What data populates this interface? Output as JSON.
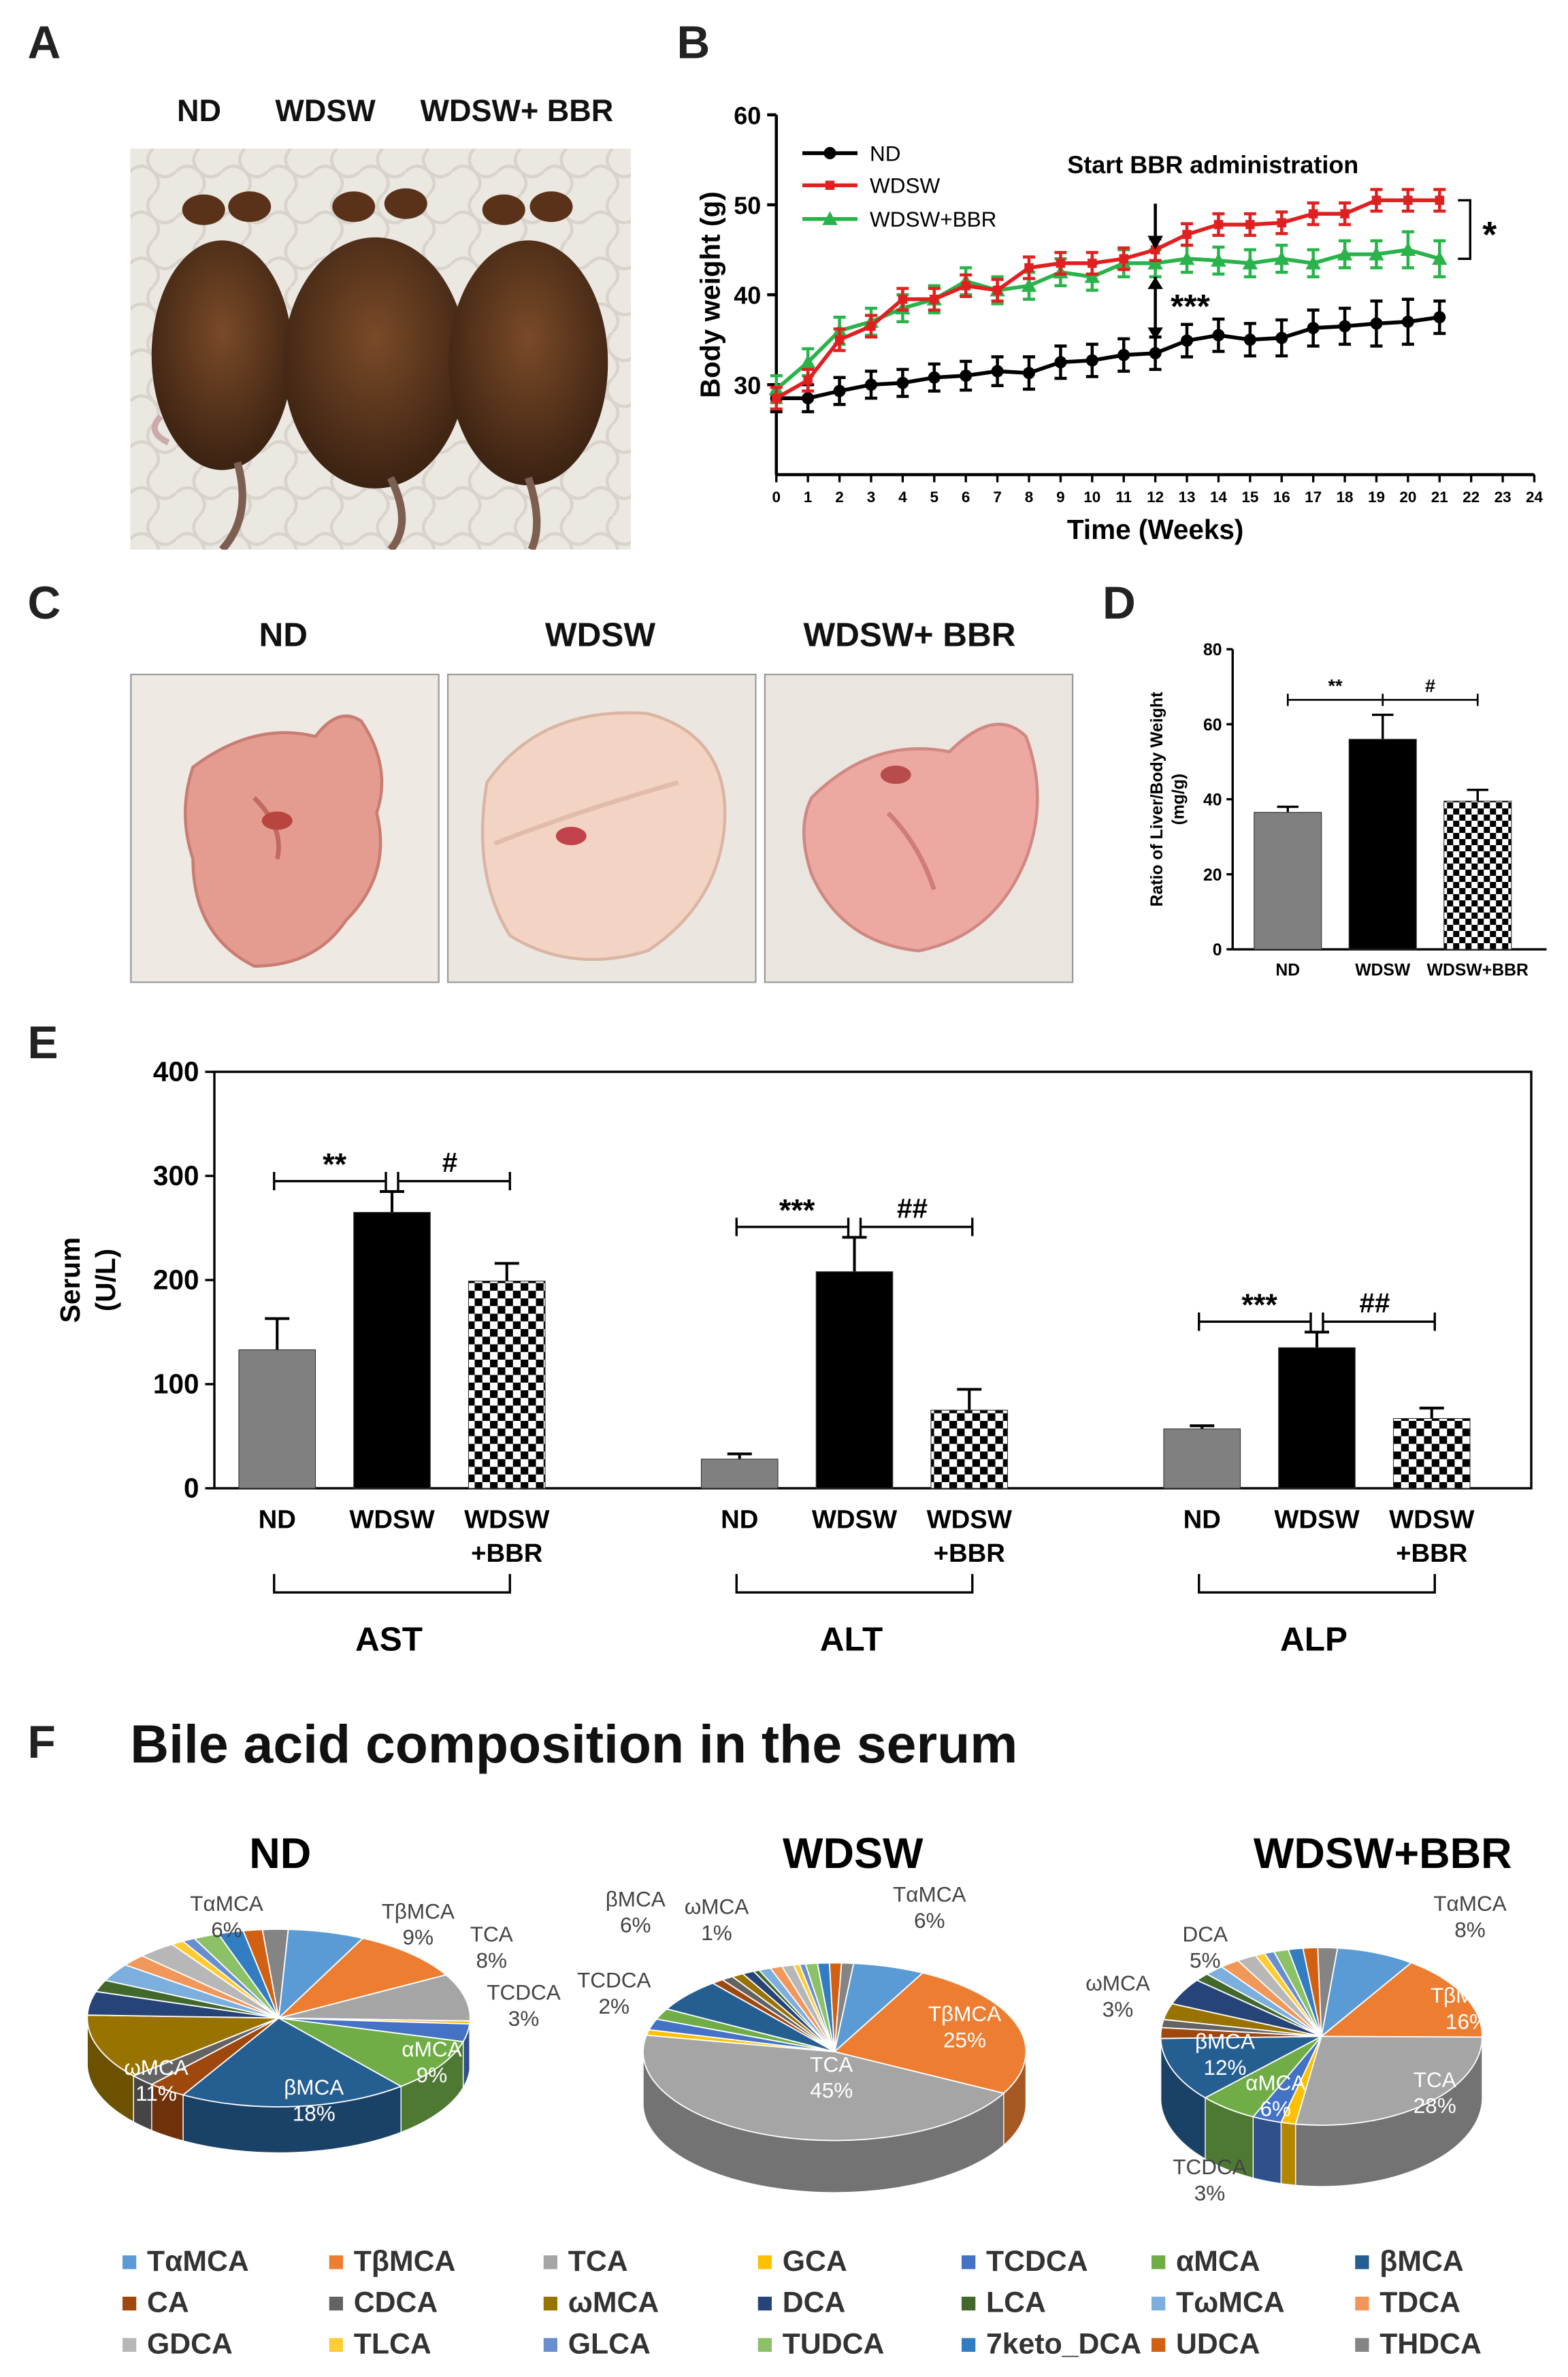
{
  "panels": {
    "A": "A",
    "B": "B",
    "C": "C",
    "D": "D",
    "E": "E",
    "F": "F"
  },
  "panel_a": {
    "labels": [
      "ND",
      "WDSW",
      "WDSW+ BBR"
    ]
  },
  "panel_c": {
    "labels": [
      "ND",
      "WDSW",
      "WDSW+ BBR"
    ]
  },
  "colors": {
    "nd": "#000000",
    "wdsw": "#e02020",
    "bbr": "#29b34a",
    "bar_nd": "#808080",
    "bar_wdsw": "#000000"
  },
  "chart_data": [
    {
      "id": "B",
      "type": "line",
      "ylabel": "Body weight (g)",
      "xlabel": "Time (Weeks)",
      "ylim": [
        20,
        60
      ],
      "yticks": [
        "30",
        "40",
        "50",
        "60"
      ],
      "xlim": [
        0,
        24
      ],
      "xticks": [
        "0",
        "1",
        "2",
        "3",
        "4",
        "5",
        "6",
        "7",
        "8",
        "9",
        "10",
        "11",
        "12",
        "13",
        "14",
        "15",
        "16",
        "17",
        "18",
        "19",
        "20",
        "21",
        "22",
        "23",
        "24"
      ],
      "annotation": "Start BBR administration",
      "sig_top": "*",
      "sig_mid": "***",
      "series": [
        {
          "name": "ND",
          "x": [
            0,
            1,
            2,
            3,
            4,
            5,
            6,
            7,
            8,
            9,
            10,
            11,
            12,
            13,
            14,
            15,
            16,
            17,
            18,
            19,
            20,
            21
          ],
          "values": [
            28.5,
            28.5,
            29.3,
            30,
            30.2,
            30.8,
            31,
            31.5,
            31.3,
            32.5,
            32.7,
            33.3,
            33.5,
            34.9,
            35.5,
            35,
            35.2,
            36.3,
            36.5,
            36.8,
            37,
            37.5
          ],
          "err": [
            1.5,
            1.5,
            1.5,
            1.5,
            1.5,
            1.5,
            1.6,
            1.6,
            1.8,
            1.8,
            1.8,
            1.8,
            1.8,
            1.8,
            1.8,
            1.8,
            2,
            2,
            2,
            2.5,
            2.5,
            1.8
          ]
        },
        {
          "name": "WDSW",
          "x": [
            0,
            1,
            2,
            3,
            4,
            5,
            6,
            7,
            8,
            9,
            10,
            11,
            12,
            13,
            14,
            15,
            16,
            17,
            18,
            19,
            20,
            21
          ],
          "values": [
            28.5,
            30.5,
            35,
            36.5,
            39.5,
            39.5,
            41,
            40.5,
            43,
            43.5,
            43.5,
            44,
            45,
            46.7,
            47.8,
            47.8,
            48,
            49,
            49,
            50.5,
            50.5,
            50.5
          ],
          "err": [
            1.2,
            1.2,
            1.2,
            1.2,
            1.2,
            1.2,
            1.2,
            1.2,
            1.2,
            1.2,
            1.2,
            1.2,
            1.2,
            1.2,
            1.2,
            1.2,
            1.2,
            1.2,
            1.2,
            1.2,
            1.2,
            1.2
          ]
        },
        {
          "name": "WDSW+BBR",
          "x": [
            0,
            1,
            2,
            3,
            4,
            5,
            6,
            7,
            8,
            9,
            10,
            11,
            12,
            13,
            14,
            15,
            16,
            17,
            18,
            19,
            20,
            21
          ],
          "values": [
            29.5,
            32.5,
            36,
            37,
            38.5,
            39.5,
            41.5,
            40.5,
            41,
            42.5,
            42,
            43.5,
            43.5,
            44,
            43.8,
            43.5,
            44,
            43.5,
            44.5,
            44.5,
            45,
            44
          ],
          "err": [
            1.5,
            1.5,
            1.5,
            1.5,
            1.5,
            1.5,
            1.5,
            1.5,
            1.5,
            1.5,
            1.5,
            1.5,
            1.5,
            1.5,
            1.5,
            1.5,
            1.5,
            1.5,
            1.5,
            1.5,
            2,
            2
          ]
        }
      ]
    },
    {
      "id": "D",
      "type": "bar",
      "ylabel": "Ratio of Liver/Body Weight (mg/g)",
      "ylabel_line1": "Ratio of Liver/Body Weight",
      "ylabel_line2": "(mg/g)",
      "ylim": [
        0,
        80
      ],
      "yticks": [
        "0",
        "20",
        "40",
        "60",
        "80"
      ],
      "categories": [
        "ND",
        "WDSW",
        "WDSW+BBR"
      ],
      "values": [
        36.5,
        56,
        39.5
      ],
      "err": [
        1.5,
        6.5,
        3
      ],
      "sig": [
        "**",
        "#"
      ]
    },
    {
      "id": "E",
      "type": "bar",
      "ylabel": "Serum (U/L)",
      "ylabel_line1": "Serum",
      "ylabel_line2": "(U/L)",
      "ylim": [
        0,
        400
      ],
      "yticks": [
        "0",
        "100",
        "200",
        "300",
        "400"
      ],
      "groups": [
        {
          "name": "AST",
          "categories": [
            "ND",
            "WDSW",
            "WDSW +BBR"
          ],
          "values": [
            133,
            265,
            199
          ],
          "err": [
            30,
            20,
            17
          ],
          "sig": [
            "**",
            "#"
          ]
        },
        {
          "name": "ALT",
          "categories": [
            "ND",
            "WDSW",
            "WDSW +BBR"
          ],
          "values": [
            28,
            208,
            75
          ],
          "err": [
            5,
            33,
            20
          ],
          "sig": [
            "***",
            "##"
          ]
        },
        {
          "name": "ALP",
          "categories": [
            "ND",
            "WDSW",
            "WDSW +BBR"
          ],
          "values": [
            57,
            135,
            67
          ],
          "err": [
            3,
            15,
            10
          ],
          "sig": [
            "***",
            "##"
          ]
        }
      ]
    },
    {
      "id": "F",
      "type": "pie",
      "title": "Bile acid composition in the serum",
      "legend": [
        {
          "name": "TαMCA",
          "color": "#5b9bd5"
        },
        {
          "name": "TβMCA",
          "color": "#ed7d31"
        },
        {
          "name": "TCA",
          "color": "#a5a5a5"
        },
        {
          "name": "GCA",
          "color": "#ffc000"
        },
        {
          "name": "TCDCA",
          "color": "#4472c4"
        },
        {
          "name": "αMCA",
          "color": "#70ad47"
        },
        {
          "name": "βMCA",
          "color": "#255e91"
        },
        {
          "name": "CA",
          "color": "#9e480e"
        },
        {
          "name": "CDCA",
          "color": "#636363"
        },
        {
          "name": "ωMCA",
          "color": "#997300"
        },
        {
          "name": "DCA",
          "color": "#264478"
        },
        {
          "name": "LCA",
          "color": "#43682b"
        },
        {
          "name": "TωMCA",
          "color": "#7cafdd"
        },
        {
          "name": "TDCA",
          "color": "#f1975a"
        },
        {
          "name": "GDCA",
          "color": "#b7b7b7"
        },
        {
          "name": "TLCA",
          "color": "#ffcd33"
        },
        {
          "name": "GLCA",
          "color": "#698ed0"
        },
        {
          "name": "TUDCA",
          "color": "#8cc168"
        },
        {
          "name": "7keto_DCA",
          "color": "#327dc2"
        },
        {
          "name": "UDCA",
          "color": "#d26012"
        },
        {
          "name": "THDCA",
          "color": "#848484"
        }
      ],
      "pies": [
        {
          "title": "ND",
          "values": [
            6,
            9,
            8,
            0.5,
            3,
            9,
            18,
            3,
            2,
            11,
            4,
            2,
            3,
            2,
            3,
            1,
            1,
            2,
            2,
            1.5,
            2
          ],
          "labels": [
            {
              "text": [
                "TαMCA",
                "6%"
              ]
            },
            {
              "text": [
                "TβMCA",
                "9%"
              ]
            },
            {
              "text": [
                "TCA",
                "8%"
              ]
            },
            {
              "text": [
                "TCDCA",
                "3%"
              ]
            },
            {
              "text": [
                "αMCA",
                "9%"
              ]
            },
            {
              "text": [
                "βMCA",
                "18%"
              ]
            },
            {
              "text": [
                "ωMCA",
                "11%"
              ]
            }
          ]
        },
        {
          "title": "WDSW",
          "values": [
            6,
            25,
            45,
            1,
            2,
            2,
            6,
            1,
            1,
            1,
            1,
            0.5,
            1,
            1,
            1,
            0.5,
            0.5,
            1,
            1,
            1,
            1
          ],
          "labels": [
            {
              "text": [
                "TαMCA",
                "6%"
              ]
            },
            {
              "text": [
                "TβMCA",
                "25%"
              ]
            },
            {
              "text": [
                "TCA",
                "45%"
              ]
            },
            {
              "text": [
                "TCDCA",
                "2%"
              ]
            },
            {
              "text": [
                "βMCA",
                "6%"
              ]
            },
            {
              "text": [
                "ωMCA",
                "1%"
              ]
            }
          ]
        },
        {
          "title": "WDSW+BBR",
          "values": [
            8,
            16,
            28,
            1.5,
            3,
            6,
            12,
            2,
            1.5,
            3,
            5,
            1.5,
            2,
            2,
            2,
            1,
            1,
            1.5,
            1.5,
            1.5,
            2
          ],
          "labels": [
            {
              "text": [
                "TαMCA",
                "8%"
              ]
            },
            {
              "text": [
                "TβMCA",
                "16%"
              ]
            },
            {
              "text": [
                "TCA",
                "28%"
              ]
            },
            {
              "text": [
                "TCDCA",
                "3%"
              ]
            },
            {
              "text": [
                "αMCA",
                "6%"
              ]
            },
            {
              "text": [
                "βMCA",
                "12%"
              ]
            },
            {
              "text": [
                "ωMCA",
                "3%"
              ]
            },
            {
              "text": [
                "DCA",
                "5%"
              ]
            }
          ]
        }
      ]
    }
  ]
}
